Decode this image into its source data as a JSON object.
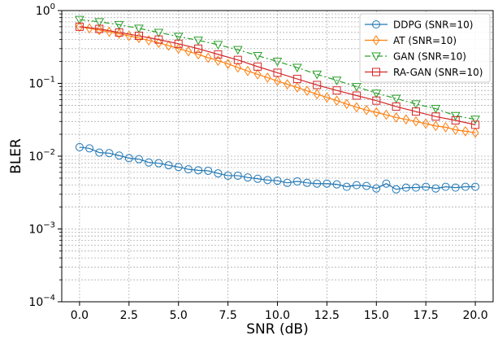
{
  "chart_data": {
    "type": "line",
    "xlabel": "SNR (dB)",
    "ylabel": "BLER",
    "y_scale": "log",
    "xlim": [
      -0.9,
      20.9
    ],
    "ylim": [
      0.0001,
      1
    ],
    "xticks": [
      0,
      2.5,
      5,
      7.5,
      10,
      12.5,
      15,
      17.5,
      20
    ],
    "xtick_labels": [
      "0.0",
      "2.5",
      "5.0",
      "7.5",
      "10.0",
      "12.5",
      "15.0",
      "17.5",
      "20.0"
    ],
    "yticks": [
      0.0001,
      0.001,
      0.01,
      0.1,
      1
    ],
    "ytick_labels": [
      {
        "base": "10",
        "exp": "−4"
      },
      {
        "base": "10",
        "exp": "−3"
      },
      {
        "base": "10",
        "exp": "−2"
      },
      {
        "base": "10",
        "exp": "−1"
      },
      {
        "base": "10",
        "exp": "0"
      }
    ],
    "grid": true,
    "legend_position": "top-right",
    "x": [
      0,
      0.5,
      1,
      1.5,
      2,
      2.5,
      3,
      3.5,
      4,
      4.5,
      5,
      5.5,
      6,
      6.5,
      7,
      7.5,
      8,
      8.5,
      9,
      9.5,
      10,
      10.5,
      11,
      11.5,
      12,
      12.5,
      13,
      13.5,
      14,
      14.5,
      15,
      15.5,
      16,
      16.5,
      17,
      17.5,
      18,
      18.5,
      19,
      19.5,
      20
    ],
    "series": [
      {
        "name": "DDPG (SNR=10)",
        "color": "#1f77b4",
        "marker": "circle",
        "linestyle": "solid",
        "x": [
          0,
          0.5,
          1,
          1.5,
          2,
          2.5,
          3,
          3.5,
          4,
          4.5,
          5,
          5.5,
          6,
          6.5,
          7,
          7.5,
          8,
          8.5,
          9,
          9.5,
          10,
          10.5,
          11,
          11.5,
          12,
          12.5,
          13,
          13.5,
          14,
          14.5,
          15,
          15.5,
          16,
          16.5,
          17,
          17.5,
          18,
          18.5,
          19,
          19.5,
          20
        ],
        "values": [
          0.0133,
          0.0128,
          0.0112,
          0.011,
          0.0102,
          0.0094,
          0.0091,
          0.0082,
          0.008,
          0.0075,
          0.0071,
          0.0066,
          0.0064,
          0.0063,
          0.0058,
          0.0054,
          0.0054,
          0.0051,
          0.0049,
          0.0047,
          0.0046,
          0.0043,
          0.0045,
          0.0043,
          0.0042,
          0.0042,
          0.0041,
          0.0038,
          0.004,
          0.0039,
          0.0036,
          0.0042,
          0.0035,
          0.0037,
          0.0037,
          0.0038,
          0.0036,
          0.0038,
          0.0037,
          0.0038,
          0.0038
        ]
      },
      {
        "name": "AT (SNR=10)",
        "color": "#ff7f0e",
        "marker": "diamond",
        "linestyle": "solid",
        "x": [
          0,
          0.5,
          1,
          1.5,
          2,
          2.5,
          3,
          3.5,
          4,
          4.5,
          5,
          5.5,
          6,
          6.5,
          7,
          7.5,
          8,
          8.5,
          9,
          9.5,
          10,
          10.5,
          11,
          11.5,
          12,
          12.5,
          13,
          13.5,
          14,
          14.5,
          15,
          15.5,
          16,
          16.5,
          17,
          17.5,
          18,
          18.5,
          19,
          19.5,
          20
        ],
        "values": [
          0.6,
          0.57,
          0.54,
          0.51,
          0.48,
          0.45,
          0.42,
          0.39,
          0.36,
          0.33,
          0.3,
          0.275,
          0.25,
          0.225,
          0.205,
          0.185,
          0.165,
          0.148,
          0.133,
          0.12,
          0.108,
          0.097,
          0.088,
          0.079,
          0.071,
          0.064,
          0.058,
          0.052,
          0.047,
          0.043,
          0.04,
          0.037,
          0.034,
          0.032,
          0.03,
          0.028,
          0.026,
          0.025,
          0.023,
          0.022,
          0.021
        ]
      },
      {
        "name": "GAN (SNR=10)",
        "color": "#2ca02c",
        "marker": "triangle-down",
        "linestyle": "dashdot",
        "x": [
          0,
          1,
          2,
          3,
          4,
          5,
          6,
          7,
          8,
          9,
          10,
          11,
          12,
          13,
          14,
          15,
          16,
          17,
          18,
          19,
          20
        ],
        "values": [
          0.75,
          0.7,
          0.64,
          0.57,
          0.5,
          0.44,
          0.39,
          0.34,
          0.29,
          0.24,
          0.2,
          0.165,
          0.133,
          0.11,
          0.09,
          0.073,
          0.062,
          0.052,
          0.045,
          0.036,
          0.032
        ]
      },
      {
        "name": "RA-GAN (SNR=10)",
        "color": "#d62728",
        "marker": "square",
        "linestyle": "solid",
        "x": [
          0,
          1,
          2,
          3,
          4,
          5,
          6,
          7,
          8,
          9,
          10,
          11,
          12,
          13,
          14,
          15,
          16,
          17,
          18,
          19,
          20
        ],
        "values": [
          0.6,
          0.56,
          0.5,
          0.45,
          0.4,
          0.35,
          0.3,
          0.25,
          0.21,
          0.17,
          0.14,
          0.115,
          0.095,
          0.08,
          0.068,
          0.058,
          0.048,
          0.041,
          0.035,
          0.031,
          0.027
        ]
      }
    ]
  }
}
